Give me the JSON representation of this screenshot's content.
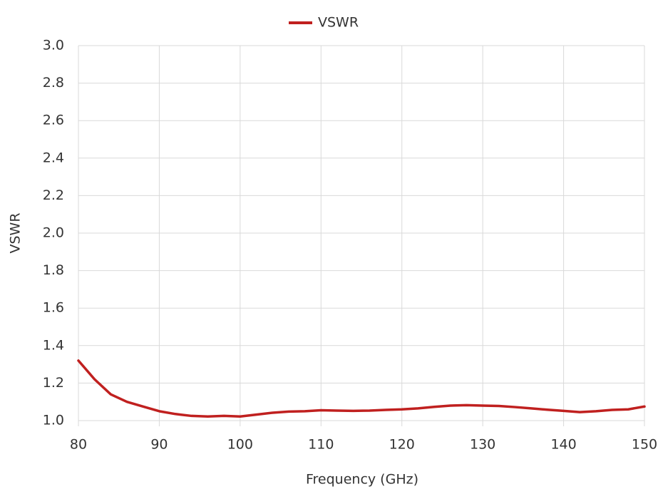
{
  "chart_data": {
    "type": "line",
    "legend": "top",
    "x_label": "Frequency (GHz)",
    "y_label": "VSWR",
    "grid": true,
    "xlim": [
      80,
      150
    ],
    "xticks": [
      80,
      90,
      100,
      110,
      120,
      130,
      140,
      150
    ],
    "ylim": [
      1.0,
      3.0
    ],
    "yticks": [
      {
        "value": 1.0,
        "label": "1.0"
      },
      {
        "value": 1.2,
        "label": "1.2"
      },
      {
        "value": 1.4,
        "label": "1.4"
      },
      {
        "value": 1.6,
        "label": "1.6"
      },
      {
        "value": 1.8,
        "label": "1.8"
      },
      {
        "value": 2.0,
        "label": "2.0"
      },
      {
        "value": 2.2,
        "label": "2.2"
      },
      {
        "value": 2.4,
        "label": "2.4"
      },
      {
        "value": 2.6,
        "label": "2.6"
      },
      {
        "value": 2.8,
        "label": "2.8"
      },
      {
        "value": 3.0,
        "label": "3.0"
      }
    ],
    "x": [
      80,
      82,
      84,
      86,
      88,
      90,
      92,
      94,
      96,
      98,
      100,
      102,
      104,
      106,
      108,
      110,
      112,
      114,
      116,
      118,
      120,
      122,
      124,
      126,
      128,
      130,
      132,
      134,
      136,
      138,
      140,
      142,
      144,
      146,
      148,
      150
    ],
    "series": [
      {
        "name": "VSWR",
        "color": "#c0201f",
        "values": [
          1.32,
          1.22,
          1.14,
          1.1,
          1.075,
          1.05,
          1.035,
          1.025,
          1.022,
          1.025,
          1.022,
          1.032,
          1.042,
          1.048,
          1.05,
          1.055,
          1.053,
          1.052,
          1.053,
          1.057,
          1.06,
          1.065,
          1.073,
          1.08,
          1.082,
          1.08,
          1.078,
          1.072,
          1.065,
          1.058,
          1.052,
          1.045,
          1.05,
          1.057,
          1.06,
          1.075
        ]
      }
    ]
  }
}
